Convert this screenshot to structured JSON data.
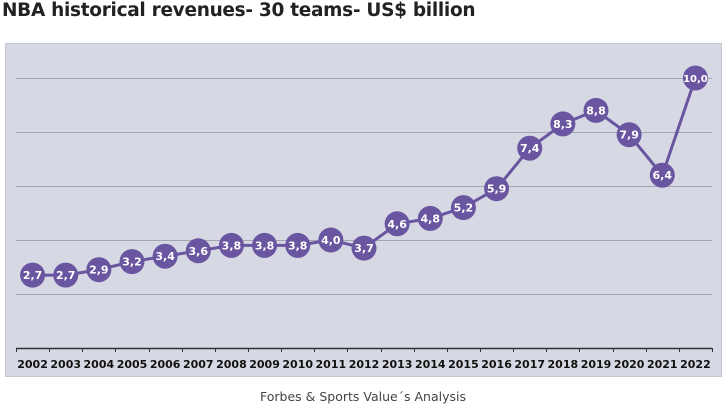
{
  "title": "NBA historical revenues- 30 teams- US$ billion",
  "source": "Forbes & Sports Value´s Analysis",
  "colors": {
    "background": "#d6d9e3",
    "line": "#6a55a0",
    "marker": "#6a55a0",
    "marker_text": "#ffffff",
    "grid": "#a3a6b0",
    "axis": "#333333"
  },
  "chart_data": {
    "type": "line",
    "title": "NBA historical revenues- 30 teams- US$ billion",
    "xlabel": "",
    "ylabel": "",
    "categories": [
      "2002",
      "2003",
      "2004",
      "2005",
      "2006",
      "2007",
      "2008",
      "2009",
      "2010",
      "2011",
      "2012",
      "2013",
      "2014",
      "2015",
      "2016",
      "2017",
      "2018",
      "2019",
      "2020",
      "2021",
      "2022"
    ],
    "series": [
      {
        "name": "Revenues (US$ billion)",
        "values": [
          2.7,
          2.7,
          2.9,
          3.2,
          3.4,
          3.6,
          3.8,
          3.8,
          3.8,
          4.0,
          3.7,
          4.6,
          4.8,
          5.2,
          5.9,
          7.4,
          8.3,
          8.8,
          7.9,
          6.4,
          10.0
        ],
        "labels": [
          "2,7",
          "2,7",
          "2,9",
          "3,2",
          "3,4",
          "3,6",
          "3,8",
          "3,8",
          "3,8",
          "4,0",
          "3,7",
          "4,6",
          "4,8",
          "5,2",
          "5,9",
          "7,4",
          "8,3",
          "8,8",
          "7,9",
          "6,4",
          "10,0"
        ]
      }
    ],
    "ylim": [
      0,
      10
    ],
    "gridlines": [
      2,
      4,
      6,
      8,
      10
    ],
    "grid": true,
    "y_tick_labels_shown": false,
    "legend": "none",
    "data_labels": "inside-markers",
    "source": "Forbes & Sports Value´s Analysis"
  }
}
